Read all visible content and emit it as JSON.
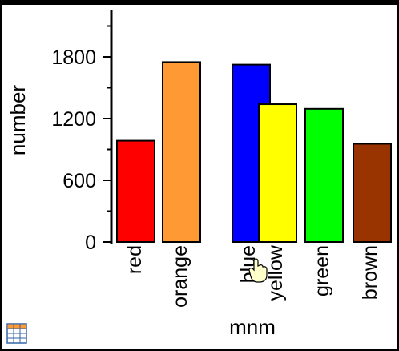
{
  "chart_data": {
    "type": "bar",
    "categories": [
      "red",
      "orange",
      "blue",
      "yellow",
      "green",
      "brown"
    ],
    "values": [
      985,
      1750,
      1725,
      1340,
      1295,
      955
    ],
    "colors": [
      "#ff0000",
      "#ff9933",
      "#0000ff",
      "#ffff00",
      "#00ff00",
      "#993300"
    ],
    "xlabel": "mnm",
    "ylabel": "number",
    "yticks": [
      0,
      600,
      1200,
      1800
    ],
    "ytick_labels": [
      "0",
      "600",
      "1200",
      "1800"
    ],
    "ylim": [
      0,
      2250
    ],
    "grid": false,
    "legend": "none"
  },
  "icons": {
    "cursor": "hand-cursor-icon",
    "table": "table-icon"
  }
}
